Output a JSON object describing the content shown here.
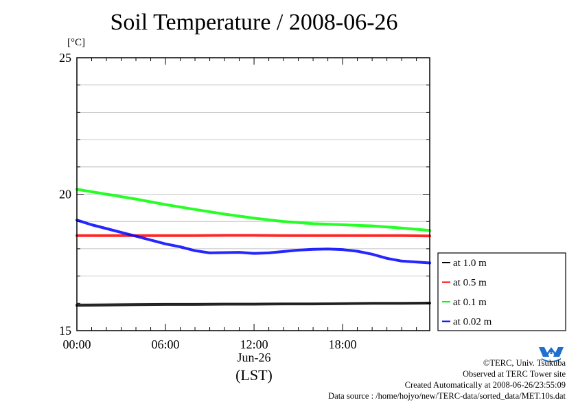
{
  "page": {
    "title": "Soil Temperature / 2008-06-26",
    "unit": "[°C]",
    "x_date_label": "Jun-26",
    "x_tz_label": "(LST)"
  },
  "footer": {
    "line1": "©TERC, Univ. Tsukuba",
    "line2": "Observed at TERC Tower site",
    "line3": "Created Automatically at 2008-06-26/23:55:09",
    "line4": "Data source : /home/hojyo/new/TERC-data/sorted_data/MET.10s.dat"
  },
  "logo": {
    "icon": "terc-logo-icon",
    "text": "TERC",
    "color": "#1e6fd0"
  },
  "chart_data": {
    "type": "line",
    "title": "Soil Temperature / 2008-06-26",
    "ylabel": "[°C]",
    "xlabel": "Jun-26",
    "ylim": [
      15,
      25
    ],
    "xlim_hours": [
      0,
      23.9
    ],
    "yticks": [
      15,
      20,
      25
    ],
    "ytick_labels": [
      "15",
      "20",
      "25"
    ],
    "xticks_hours": [
      0,
      6,
      12,
      18
    ],
    "xtick_labels": [
      "00:00",
      "06:00",
      "12:00",
      "18:00"
    ],
    "grid": true,
    "legend_position": "right",
    "series": [
      {
        "name": "at 1.0 m",
        "color": "#000000",
        "x": [
          0,
          2,
          4,
          6,
          8,
          10,
          12,
          14,
          16,
          18,
          20,
          22,
          23.9
        ],
        "y": [
          15.93,
          15.94,
          15.95,
          15.96,
          15.96,
          15.97,
          15.97,
          15.98,
          15.98,
          15.99,
          16.0,
          16.0,
          16.01
        ]
      },
      {
        "name": "at 0.5 m",
        "color": "#ff0000",
        "x": [
          0,
          2,
          4,
          6,
          8,
          10,
          12,
          14,
          16,
          18,
          20,
          22,
          23.9
        ],
        "y": [
          18.48,
          18.48,
          18.48,
          18.48,
          18.48,
          18.49,
          18.49,
          18.48,
          18.48,
          18.48,
          18.48,
          18.48,
          18.47
        ]
      },
      {
        "name": "at 0.1 m",
        "color": "#00ff00",
        "x": [
          0,
          2,
          4,
          6,
          8,
          10,
          12,
          14,
          16,
          18,
          20,
          22,
          23.9
        ],
        "y": [
          20.18,
          20.0,
          19.82,
          19.62,
          19.44,
          19.27,
          19.12,
          19.0,
          18.92,
          18.88,
          18.84,
          18.76,
          18.67
        ]
      },
      {
        "name": "at 0.02 m",
        "color": "#0000ff",
        "x": [
          0,
          1,
          2,
          3,
          4,
          5,
          6,
          7,
          8,
          9,
          10,
          11,
          12,
          13,
          14,
          15,
          16,
          17,
          18,
          19,
          20,
          21,
          22,
          23.9
        ],
        "y": [
          19.05,
          18.88,
          18.74,
          18.6,
          18.46,
          18.32,
          18.18,
          18.07,
          17.93,
          17.85,
          17.86,
          17.87,
          17.83,
          17.85,
          17.9,
          17.95,
          17.98,
          17.99,
          17.97,
          17.91,
          17.8,
          17.65,
          17.55,
          17.48
        ]
      }
    ]
  }
}
